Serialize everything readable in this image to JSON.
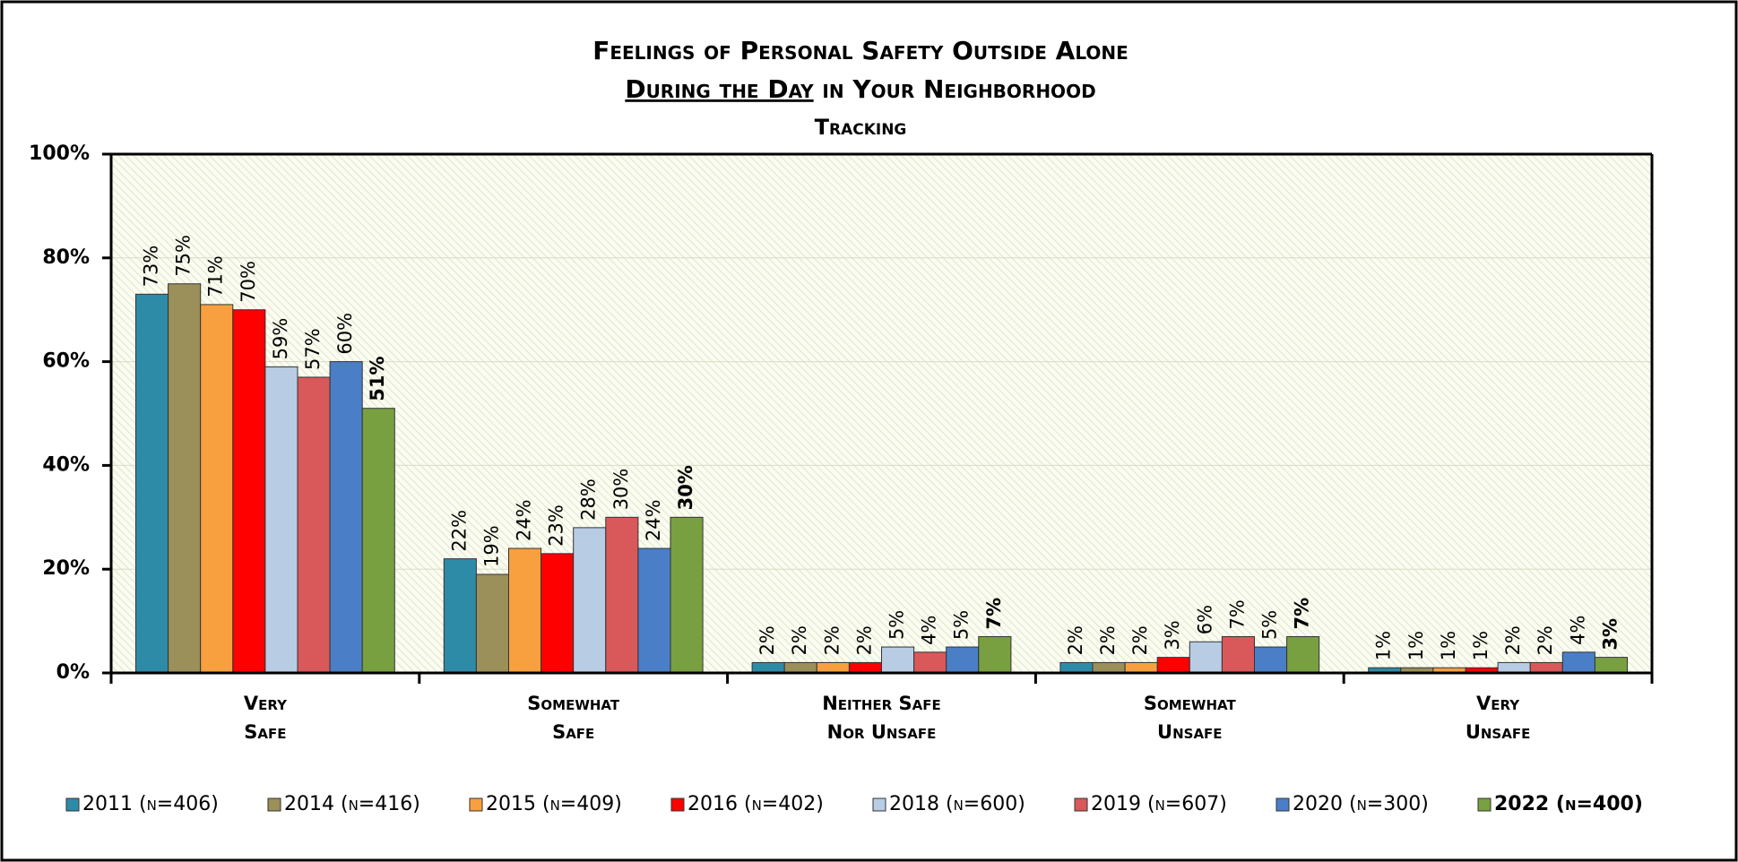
{
  "chart_data": {
    "type": "bar",
    "title": "Feelings of Personal Safety Outside Alone",
    "title_underlined": "During the Day",
    "title_rest": "in Your Neighborhood",
    "subtitle": "Tracking",
    "categories": [
      [
        "Very",
        "Safe"
      ],
      [
        "Somewhat",
        "Safe"
      ],
      [
        "Neither Safe",
        "Nor Unsafe"
      ],
      [
        "Somewhat",
        "Unsafe"
      ],
      [
        "Very",
        "Unsafe"
      ]
    ],
    "ylim": [
      0,
      100
    ],
    "yticks": [
      {
        "value": 0,
        "label": "0%"
      },
      {
        "value": 20,
        "label": "20%"
      },
      {
        "value": 40,
        "label": "40%"
      },
      {
        "value": 60,
        "label": "60%"
      },
      {
        "value": 80,
        "label": "80%"
      },
      {
        "value": 100,
        "label": "100%"
      }
    ],
    "grid": true,
    "legend": "bottom",
    "series": [
      {
        "name": "2011 (n=406)",
        "color": "#2e8ba8",
        "values": [
          73,
          22,
          2,
          2,
          1
        ],
        "value_labels": [
          "73%",
          "22%",
          "2%",
          "2%",
          "1%"
        ]
      },
      {
        "name": "2014 (n=416)",
        "color": "#9b8f5a",
        "values": [
          75,
          19,
          2,
          2,
          1
        ],
        "value_labels": [
          "75%",
          "19%",
          "2%",
          "2%",
          "1%"
        ]
      },
      {
        "name": "2015 (n=409)",
        "color": "#f8a040",
        "values": [
          71,
          24,
          2,
          2,
          1
        ],
        "value_labels": [
          "71%",
          "24%",
          "2%",
          "2%",
          "1%"
        ]
      },
      {
        "name": "2016 (n=402)",
        "color": "#ff0000",
        "values": [
          70,
          23,
          2,
          3,
          1
        ],
        "value_labels": [
          "70%",
          "23%",
          "2%",
          "3%",
          "1%"
        ]
      },
      {
        "name": "2018 (n=600)",
        "color": "#b8cce4",
        "values": [
          59,
          28,
          5,
          6,
          2
        ],
        "value_labels": [
          "59%",
          "28%",
          "5%",
          "6%",
          "2%"
        ]
      },
      {
        "name": "2019 (n=607)",
        "color": "#d9595a",
        "values": [
          57,
          30,
          4,
          7,
          2
        ],
        "value_labels": [
          "57%",
          "30%",
          "4%",
          "7%",
          "2%"
        ]
      },
      {
        "name": "2020 (n=300)",
        "color": "#4a7fc8",
        "values": [
          60,
          24,
          5,
          5,
          4
        ],
        "value_labels": [
          "60%",
          "24%",
          "5%",
          "5%",
          "4%"
        ]
      },
      {
        "name": "2022 (n=400)",
        "color": "#78a040",
        "bold": true,
        "values": [
          51,
          30,
          7,
          7,
          3
        ],
        "value_labels": [
          "51%",
          "30%",
          "7%",
          "7%",
          "3%"
        ]
      }
    ]
  }
}
